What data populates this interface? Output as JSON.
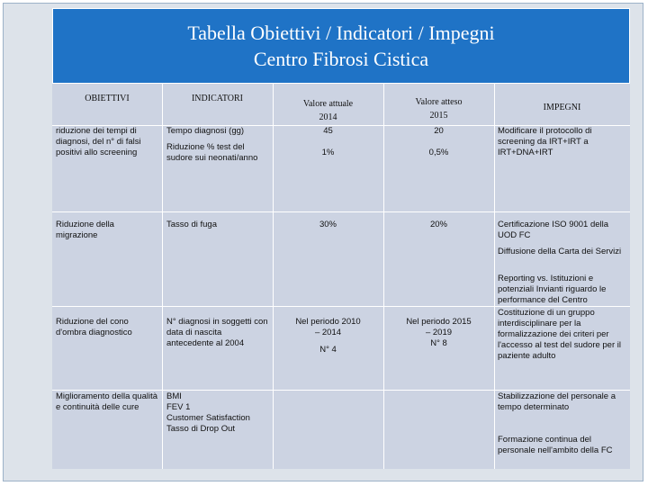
{
  "title": {
    "line1": "Tabella Obiettivi / Indicatori / Impegni",
    "line2": "Centro Fibrosi Cistica"
  },
  "headers": {
    "obiettivi": "OBIETTIVI",
    "indicatori": "INDICATORI",
    "attuale_l1": "Valore attuale",
    "attuale_l2": "2014",
    "atteso_l1": "Valore atteso",
    "atteso_l2": "2015",
    "impegni": "IMPEGNI"
  },
  "rows": {
    "r1": {
      "obiettivo": "riduzione dei tempi di diagnosi, del n° di falsi positivi allo screening",
      "indicatore1": "Tempo diagnosi (gg)",
      "indicatore2": "Riduzione % test del sudore sui neonati/anno",
      "attuale1": "45",
      "attuale2": "1%",
      "atteso1": "20",
      "atteso2": "0,5%",
      "impegno": "Modificare il protocollo di screening da IRT+IRT a IRT+DNA+IRT"
    },
    "r2": {
      "obiettivo": "Riduzione della migrazione",
      "indicatore": "Tasso di fuga",
      "attuale": "30%",
      "atteso": "20%",
      "impegno1": "Certificazione ISO 9001 della UOD FC",
      "impegno2": "Diffusione della Carta dei Servizi",
      "impegno3": "Reporting vs. Istituzioni e potenziali Invianti riguardo le performance del Centro"
    },
    "r3": {
      "obiettivo": "Riduzione del cono d'ombra diagnostico",
      "indicatore": "N° diagnosi in soggetti con data di nascita antecedente al 2004",
      "attuale1": "Nel periodo 2010 – 2014",
      "attuale2": "N° 4",
      "atteso1": "Nel periodo 2015 – 2019",
      "atteso2": "N° 8",
      "impegno": "Costituzione di un gruppo interdisciplinare per la formalizzazione dei criteri per l'accesso al test del sudore per il paziente adulto"
    },
    "r4": {
      "obiettivo": "Miglioramento della qualità e continuità delle cure",
      "indicatore1": "BMI",
      "indicatore2": "FEV 1",
      "indicatore3": "Customer Satisfaction",
      "indicatore4": "Tasso di Drop Out",
      "impegno1": "Stabilizzazione del personale a tempo determinato",
      "impegno2": "Formazione continua del personale nell'ambito della FC"
    }
  }
}
